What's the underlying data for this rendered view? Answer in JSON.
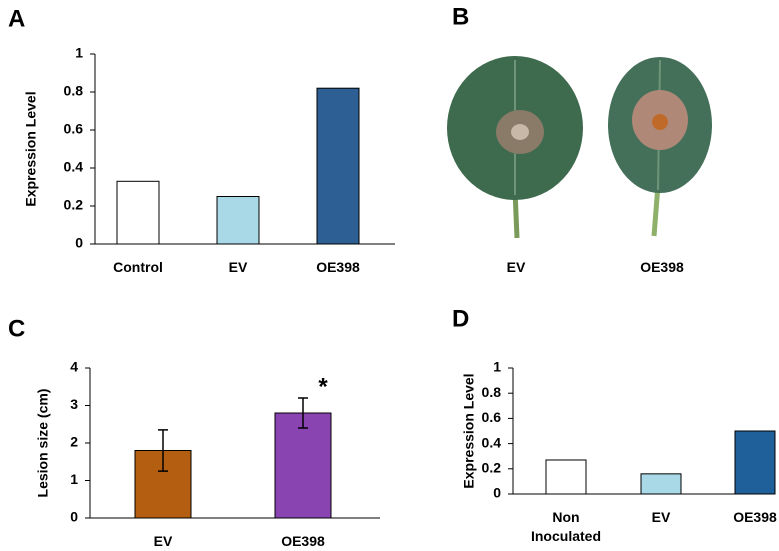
{
  "chart_data": [
    {
      "type": "bar",
      "panel": "A",
      "ylabel": "Expression  Level",
      "categories": [
        "Control",
        "EV",
        "OE398"
      ],
      "values": [
        0.33,
        0.25,
        0.82
      ],
      "colors": [
        "#ffffff",
        "#a9d8e6",
        "#2d5f94"
      ],
      "ylim": [
        0,
        1
      ],
      "yticks": [
        0,
        0.2,
        0.4,
        0.6,
        0.8,
        1
      ]
    },
    {
      "type": "image",
      "panel": "B",
      "labels": [
        "EV",
        "OE398"
      ]
    },
    {
      "type": "bar",
      "panel": "C",
      "ylabel": "Lesion size (cm)",
      "categories": [
        "EV",
        "OE398"
      ],
      "values": [
        1.8,
        2.8
      ],
      "errors": [
        0.55,
        0.4
      ],
      "colors": [
        "#b35e10",
        "#8a44b2"
      ],
      "annotation": "*",
      "ylim": [
        0,
        4
      ],
      "yticks": [
        0,
        1,
        2,
        3,
        4
      ]
    },
    {
      "type": "bar",
      "panel": "D",
      "ylabel": "Expression  Level",
      "categories": [
        "Non\nInoculated",
        "EV",
        "OE398"
      ],
      "values": [
        0.27,
        0.16,
        0.5
      ],
      "colors": [
        "#ffffff",
        "#a9d8e6",
        "#1f5f9a"
      ],
      "ylim": [
        0,
        1
      ],
      "yticks": [
        0,
        0.2,
        0.4,
        0.6,
        0.8,
        1
      ]
    }
  ]
}
